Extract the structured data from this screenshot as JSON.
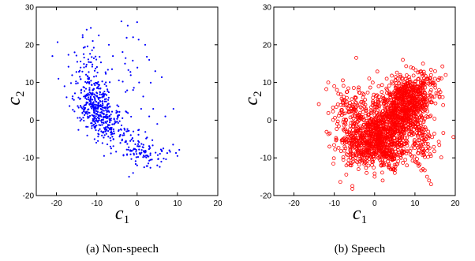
{
  "chart_data": [
    {
      "type": "scatter",
      "caption": "(a)  Non-speech",
      "xlabel": "c",
      "xlabel_sub": "1",
      "ylabel": "c",
      "ylabel_sub": "2",
      "xlim": [
        -25,
        20
      ],
      "ylim": [
        -20,
        30
      ],
      "xticks": [
        -20,
        -10,
        0,
        10,
        20
      ],
      "yticks": [
        -20,
        -10,
        0,
        10,
        20,
        30
      ],
      "grid": false,
      "legend": "none",
      "marker": "dot",
      "series": [
        {
          "color": "#0000ff",
          "clusters": [
            {
              "cx": -10,
              "cy": 3,
              "sx": 2.6,
              "sy": 4.0,
              "rho": -0.45,
              "n": 420
            },
            {
              "cx": -12,
              "cy": 13,
              "sx": 2.5,
              "sy": 4.5,
              "rho": 0.0,
              "n": 60
            },
            {
              "cx": 2.5,
              "cy": -9,
              "sx": 2.8,
              "sy": 2.0,
              "rho": 0.1,
              "n": 80
            },
            {
              "cx": -4,
              "cy": -4,
              "sx": 3.5,
              "sy": 3.0,
              "rho": -0.3,
              "n": 70
            },
            {
              "cx": -4,
              "cy": 10,
              "sx": 4.5,
              "sy": 7.0,
              "rho": 0.0,
              "n": 30
            }
          ],
          "points": [
            [
              -21,
              17
            ],
            [
              -19.5,
              11
            ],
            [
              -18,
              9
            ],
            [
              -15.5,
              18
            ],
            [
              -13.5,
              22
            ],
            [
              -12.5,
              24
            ],
            [
              -11,
              21
            ],
            [
              -9.5,
              22.5
            ],
            [
              -7,
              20
            ],
            [
              -6,
              17
            ],
            [
              -3,
              15
            ],
            [
              -1,
              22
            ],
            [
              0,
              26
            ],
            [
              2,
              20
            ],
            [
              3,
              16
            ],
            [
              4.5,
              13
            ],
            [
              0.5,
              10
            ],
            [
              -1,
              8
            ],
            [
              1,
              3
            ],
            [
              3,
              1
            ],
            [
              4,
              3
            ],
            [
              5,
              -1
            ],
            [
              7,
              1
            ],
            [
              9,
              3
            ],
            [
              10,
              -9.5
            ],
            [
              8,
              -8
            ],
            [
              -2,
              -15
            ],
            [
              -1,
              -14
            ],
            [
              0,
              -12
            ],
            [
              5,
              -12
            ],
            [
              6,
              -11
            ]
          ]
        }
      ]
    },
    {
      "type": "scatter",
      "caption": "(b)  Speech",
      "xlabel": "c",
      "xlabel_sub": "1",
      "ylabel": "c",
      "ylabel_sub": "2",
      "xlim": [
        -25,
        20
      ],
      "ylim": [
        -20,
        30
      ],
      "xticks": [
        -20,
        -10,
        0,
        10,
        20
      ],
      "yticks": [
        -20,
        -10,
        0,
        10,
        20,
        30
      ],
      "grid": false,
      "legend": "none",
      "marker": "circle",
      "series": [
        {
          "color": "#ff0000",
          "clusters": [
            {
              "cx": 1,
              "cy": -4,
              "sx": 4.5,
              "sy": 3.8,
              "rho": 0.35,
              "n": 900
            },
            {
              "cx": 8,
              "cy": 5,
              "sx": 3.2,
              "sy": 3.8,
              "rho": 0.25,
              "n": 700
            },
            {
              "cx": -5,
              "cy": 2,
              "sx": 3.0,
              "sy": 4.0,
              "rho": 0.1,
              "n": 160
            },
            {
              "cx": 12,
              "cy": -5,
              "sx": 2.0,
              "sy": 3.0,
              "rho": -0.2,
              "n": 80
            },
            {
              "cx": 4,
              "cy": -9,
              "sx": 3.5,
              "sy": 2.5,
              "rho": 0.0,
              "n": 120
            }
          ],
          "points": [
            [
              -11.5,
              10
            ],
            [
              -10,
              9
            ],
            [
              -9,
              7
            ],
            [
              -8,
              -6
            ],
            [
              -7,
              -12
            ],
            [
              -6,
              -10
            ],
            [
              -4,
              -13
            ],
            [
              -2,
              -14
            ],
            [
              0,
              -15
            ],
            [
              2,
              -16
            ],
            [
              5,
              -14
            ],
            [
              8,
              -12
            ],
            [
              10,
              -11
            ],
            [
              12,
              -13
            ],
            [
              13,
              -15
            ],
            [
              14,
              -17
            ],
            [
              13.5,
              -16
            ],
            [
              15,
              13
            ],
            [
              14,
              12
            ],
            [
              16,
              8
            ],
            [
              17,
              4
            ],
            [
              12,
              15
            ],
            [
              7,
              16
            ],
            [
              9,
              14
            ],
            [
              3,
              11
            ],
            [
              1,
              9
            ]
          ]
        }
      ]
    }
  ]
}
